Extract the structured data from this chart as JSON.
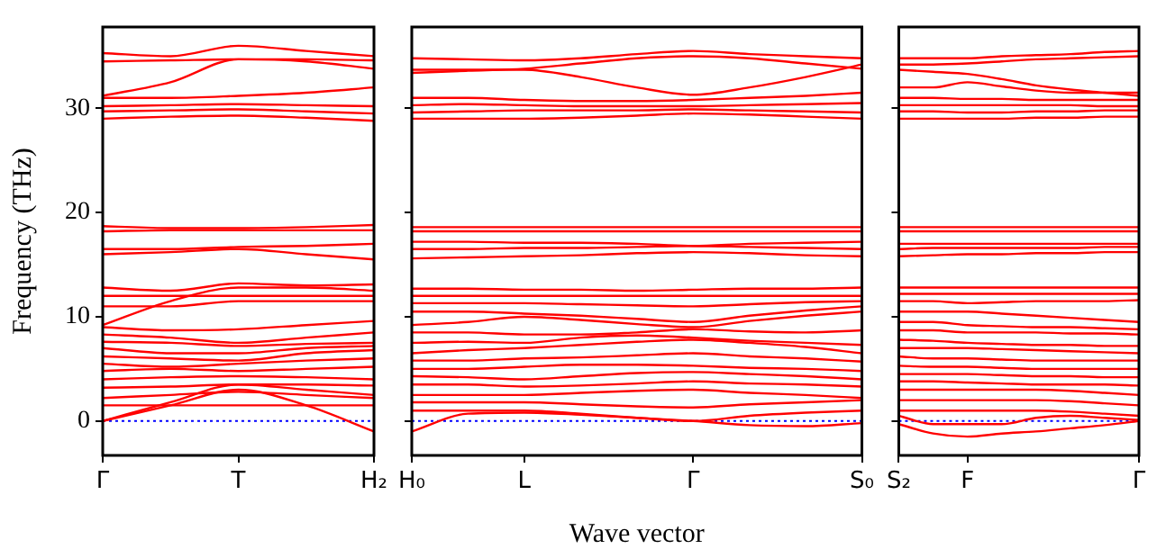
{
  "chart_data": [
    {
      "type": "line",
      "ylabel": "Frequency (THz)",
      "categories": [
        "Γ",
        null,
        "T",
        null,
        "H₂"
      ],
      "ylim": [
        -3.3,
        37.8
      ],
      "yticks": [
        0,
        10,
        20,
        30
      ],
      "grid": false,
      "legend": false,
      "ref_lines": [
        {
          "axis": "y",
          "value": 0,
          "color": "#0000ff",
          "line_style": "dotted"
        }
      ],
      "series": [
        {
          "color": "#ff0000",
          "values": [
            0,
            1.5,
            3,
            1.5,
            -1
          ]
        },
        {
          "color": "#ff0000",
          "values": [
            0,
            1.8,
            3.5,
            3,
            2.5
          ]
        },
        {
          "color": "#ff0000",
          "values": [
            1.5,
            1.5,
            1.5,
            1.5,
            1.5
          ]
        },
        {
          "color": "#ff0000",
          "values": [
            2.2,
            2.5,
            2.8,
            2.5,
            2.2
          ]
        },
        {
          "color": "#ff0000",
          "values": [
            3.2,
            3.3,
            3.5,
            3.5,
            3.4
          ]
        },
        {
          "color": "#ff0000",
          "values": [
            4,
            4.2,
            4.3,
            4.2,
            4
          ]
        },
        {
          "color": "#ff0000",
          "values": [
            4.8,
            5,
            4.8,
            5,
            5.2
          ]
        },
        {
          "color": "#ff0000",
          "values": [
            5.5,
            5.2,
            5.5,
            5.8,
            6
          ]
        },
        {
          "color": "#ff0000",
          "values": [
            6.2,
            6,
            5.8,
            6.5,
            6.8
          ]
        },
        {
          "color": "#ff0000",
          "values": [
            7,
            6.5,
            6.5,
            7,
            7.2
          ]
        },
        {
          "color": "#ff0000",
          "values": [
            7.6,
            7.5,
            7.2,
            7.4,
            7.5
          ]
        },
        {
          "color": "#ff0000",
          "values": [
            8.3,
            8,
            7.5,
            8,
            8.5
          ]
        },
        {
          "color": "#ff0000",
          "values": [
            9,
            8.7,
            8.8,
            9.2,
            9.6
          ]
        },
        {
          "color": "#ff0000",
          "values": [
            9.2,
            11.5,
            12.8,
            12.8,
            12.5
          ]
        },
        {
          "color": "#ff0000",
          "values": [
            11,
            11,
            11.5,
            11.5,
            11.5
          ]
        },
        {
          "color": "#ff0000",
          "values": [
            12,
            12,
            12,
            12,
            12
          ]
        },
        {
          "color": "#ff0000",
          "values": [
            12.8,
            12.5,
            13.2,
            13,
            13.1
          ]
        },
        {
          "color": "#ff0000",
          "values": [
            16,
            16.2,
            16.5,
            16,
            15.5
          ]
        },
        {
          "color": "#ff0000",
          "values": [
            16.5,
            16.5,
            16.7,
            16.8,
            17
          ]
        },
        {
          "color": "#ff0000",
          "values": [
            18.2,
            18.3,
            18.3,
            18.3,
            18.3
          ]
        },
        {
          "color": "#ff0000",
          "values": [
            18.7,
            18.5,
            18.5,
            18.6,
            18.8
          ]
        },
        {
          "color": "#ff0000",
          "values": [
            29,
            29.2,
            29.3,
            29.1,
            28.8
          ]
        },
        {
          "color": "#ff0000",
          "values": [
            29.7,
            29.8,
            29.9,
            29.7,
            29.5
          ]
        },
        {
          "color": "#ff0000",
          "values": [
            30.2,
            30.3,
            30.4,
            30.3,
            30.2
          ]
        },
        {
          "color": "#ff0000",
          "values": [
            31,
            31,
            31.2,
            31.5,
            32
          ]
        },
        {
          "color": "#ff0000",
          "values": [
            31.2,
            32.5,
            34.7,
            34.5,
            33.8
          ]
        },
        {
          "color": "#ff0000",
          "values": [
            34.5,
            34.6,
            34.7,
            34.7,
            34.6
          ]
        },
        {
          "color": "#ff0000",
          "values": [
            35.3,
            35,
            36,
            35.5,
            35
          ]
        }
      ]
    },
    {
      "type": "line",
      "xlabel": "Wave vector",
      "categories": [
        "H₀",
        null,
        "L",
        null,
        null,
        "Γ",
        null,
        null,
        "S₀"
      ],
      "ylim": [
        -3.3,
        37.8
      ],
      "yticks": [
        0,
        10,
        20,
        30
      ],
      "tick_labels": "x",
      "grid": false,
      "legend": false,
      "ref_lines": [
        {
          "axis": "y",
          "value": 0,
          "color": "#0000ff",
          "line_style": "dotted"
        }
      ],
      "series": [
        {
          "color": "#ff0000",
          "values": [
            -1,
            0.7,
            0.8,
            0.6,
            0.3,
            0,
            -0.4,
            -0.5,
            -0.2
          ]
        },
        {
          "color": "#ff0000",
          "values": [
            1,
            1,
            1,
            0.7,
            0.3,
            0,
            0.5,
            0.8,
            1
          ]
        },
        {
          "color": "#ff0000",
          "values": [
            1.8,
            1.8,
            1.8,
            1.6,
            1.4,
            1.3,
            1.6,
            1.8,
            2
          ]
        },
        {
          "color": "#ff0000",
          "values": [
            2.5,
            2.5,
            2.5,
            2.7,
            2.9,
            3,
            2.7,
            2.5,
            2.2
          ]
        },
        {
          "color": "#ff0000",
          "values": [
            3.5,
            3.5,
            3.3,
            3.4,
            3.6,
            3.8,
            3.6,
            3.5,
            3.3
          ]
        },
        {
          "color": "#ff0000",
          "values": [
            4.3,
            4.2,
            4,
            4.3,
            4.6,
            4.7,
            4.5,
            4.3,
            4
          ]
        },
        {
          "color": "#ff0000",
          "values": [
            5,
            5,
            5.2,
            5.4,
            5.4,
            5.3,
            5.1,
            5,
            4.8
          ]
        },
        {
          "color": "#ff0000",
          "values": [
            5.8,
            5.8,
            6,
            6.1,
            6.3,
            6.5,
            6.2,
            6,
            5.7
          ]
        },
        {
          "color": "#ff0000",
          "values": [
            6.5,
            6.8,
            7,
            7.3,
            7.6,
            7.8,
            7.5,
            7.1,
            6.5
          ]
        },
        {
          "color": "#ff0000",
          "values": [
            7.5,
            7.6,
            7.5,
            8,
            8.2,
            8,
            7.7,
            7.5,
            7.3
          ]
        },
        {
          "color": "#ff0000",
          "values": [
            8.5,
            8.5,
            8.3,
            8.3,
            8.5,
            8.8,
            8.6,
            8.5,
            8.7
          ]
        },
        {
          "color": "#ff0000",
          "values": [
            9.2,
            9.5,
            10,
            9.7,
            9.3,
            9,
            9.6,
            10.1,
            10.5
          ]
        },
        {
          "color": "#ff0000",
          "values": [
            10.5,
            10.5,
            10.3,
            10.1,
            9.8,
            9.5,
            10.1,
            10.6,
            11
          ]
        },
        {
          "color": "#ff0000",
          "values": [
            11.3,
            11.3,
            11.3,
            11.2,
            11.1,
            11,
            11.2,
            11.4,
            11.5
          ]
        },
        {
          "color": "#ff0000",
          "values": [
            12,
            12,
            12,
            12,
            12,
            12,
            12,
            12,
            12
          ]
        },
        {
          "color": "#ff0000",
          "values": [
            12.7,
            12.7,
            12.6,
            12.6,
            12.5,
            12.6,
            12.7,
            12.7,
            12.8
          ]
        },
        {
          "color": "#ff0000",
          "values": [
            15.6,
            15.7,
            15.8,
            15.9,
            16.1,
            16.2,
            16.1,
            15.9,
            15.8
          ]
        },
        {
          "color": "#ff0000",
          "values": [
            16.5,
            16.5,
            16.6,
            16.6,
            16.7,
            16.8,
            16.7,
            16.6,
            16.5
          ]
        },
        {
          "color": "#ff0000",
          "values": [
            17.2,
            17.2,
            17.1,
            17.1,
            17,
            16.8,
            17,
            17.1,
            17.2
          ]
        },
        {
          "color": "#ff0000",
          "values": [
            18.2,
            18.2,
            18.2,
            18.2,
            18.2,
            18.2,
            18.2,
            18.2,
            18.2
          ]
        },
        {
          "color": "#ff0000",
          "values": [
            18.6,
            18.6,
            18.6,
            18.6,
            18.6,
            18.6,
            18.6,
            18.6,
            18.6
          ]
        },
        {
          "color": "#ff0000",
          "values": [
            29,
            29,
            29,
            29.1,
            29.3,
            29.5,
            29.4,
            29.2,
            29
          ]
        },
        {
          "color": "#ff0000",
          "values": [
            29.6,
            29.7,
            29.8,
            29.8,
            29.8,
            29.9,
            29.8,
            29.7,
            29.6
          ]
        },
        {
          "color": "#ff0000",
          "values": [
            30.3,
            30.4,
            30.3,
            30.2,
            30.2,
            30.2,
            30.3,
            30.4,
            30.5
          ]
        },
        {
          "color": "#ff0000",
          "values": [
            31,
            31,
            30.8,
            30.7,
            30.7,
            30.8,
            31,
            31.2,
            31.5
          ]
        },
        {
          "color": "#ff0000",
          "values": [
            33.7,
            33.7,
            33.7,
            33,
            32,
            31.3,
            32,
            33,
            34.2
          ]
        },
        {
          "color": "#ff0000",
          "values": [
            33.4,
            33.6,
            33.8,
            34.3,
            34.8,
            35,
            34.8,
            34.3,
            33.8
          ]
        },
        {
          "color": "#ff0000",
          "values": [
            34.8,
            34.7,
            34.6,
            34.8,
            35.2,
            35.5,
            35.2,
            35,
            34.8
          ]
        }
      ]
    },
    {
      "type": "line",
      "categories": [
        "S₂",
        null,
        "F",
        null,
        null,
        null,
        null,
        "Γ"
      ],
      "ylim": [
        -3.3,
        37.8
      ],
      "yticks": [
        0,
        10,
        20,
        30
      ],
      "tick_labels": "x",
      "grid": false,
      "legend": false,
      "ref_lines": [
        {
          "axis": "y",
          "value": 0,
          "color": "#0000ff",
          "line_style": "dotted"
        }
      ],
      "series": [
        {
          "color": "#ff0000",
          "values": [
            -0.3,
            -1.2,
            -1.5,
            -1.2,
            -1,
            -0.7,
            -0.4,
            0
          ]
        },
        {
          "color": "#ff0000",
          "values": [
            0.5,
            -0.3,
            -0.3,
            -0.3,
            0.3,
            0.5,
            0.3,
            0.1
          ]
        },
        {
          "color": "#ff0000",
          "values": [
            1,
            1,
            1,
            1,
            1,
            0.9,
            0.7,
            0.5
          ]
        },
        {
          "color": "#ff0000",
          "values": [
            2,
            2,
            2,
            2,
            2,
            1.9,
            1.7,
            1.5
          ]
        },
        {
          "color": "#ff0000",
          "values": [
            3,
            3,
            3,
            3,
            3,
            2.9,
            2.7,
            2.5
          ]
        },
        {
          "color": "#ff0000",
          "values": [
            3.8,
            3.8,
            3.7,
            3.6,
            3.5,
            3.5,
            3.5,
            3.4
          ]
        },
        {
          "color": "#ff0000",
          "values": [
            4.5,
            4.5,
            4.5,
            4.4,
            4.3,
            4.3,
            4.2,
            4.2
          ]
        },
        {
          "color": "#ff0000",
          "values": [
            5.3,
            5.2,
            5.2,
            5.1,
            5,
            5,
            5,
            5
          ]
        },
        {
          "color": "#ff0000",
          "values": [
            6.2,
            6,
            6,
            5.9,
            5.8,
            5.8,
            5.8,
            5.8
          ]
        },
        {
          "color": "#ff0000",
          "values": [
            7,
            7,
            7,
            6.9,
            6.8,
            6.7,
            6.6,
            6.5
          ]
        },
        {
          "color": "#ff0000",
          "values": [
            7.8,
            7.7,
            7.5,
            7.4,
            7.3,
            7.3,
            7.2,
            7.2
          ]
        },
        {
          "color": "#ff0000",
          "values": [
            8.7,
            8.7,
            8.5,
            8.5,
            8.5,
            8.4,
            8.4,
            8.3
          ]
        },
        {
          "color": "#ff0000",
          "values": [
            9.5,
            9.5,
            9.2,
            9.1,
            9,
            9,
            8.9,
            8.8
          ]
        },
        {
          "color": "#ff0000",
          "values": [
            10.5,
            10.5,
            10.5,
            10.3,
            10.1,
            9.9,
            9.7,
            9.5
          ]
        },
        {
          "color": "#ff0000",
          "values": [
            11.5,
            11.5,
            11.3,
            11.4,
            11.5,
            11.5,
            11.5,
            11.6
          ]
        },
        {
          "color": "#ff0000",
          "values": [
            12.2,
            12.2,
            12.2,
            12.2,
            12.2,
            12.2,
            12.2,
            12.2
          ]
        },
        {
          "color": "#ff0000",
          "values": [
            12.8,
            12.8,
            12.8,
            12.8,
            12.8,
            12.8,
            12.8,
            12.8
          ]
        },
        {
          "color": "#ff0000",
          "values": [
            15.8,
            15.9,
            16,
            16,
            16.1,
            16.1,
            16.2,
            16.2
          ]
        },
        {
          "color": "#ff0000",
          "values": [
            16.5,
            16.6,
            16.6,
            16.6,
            16.6,
            16.6,
            16.7,
            16.7
          ]
        },
        {
          "color": "#ff0000",
          "values": [
            17,
            17,
            17,
            17,
            17,
            17,
            17,
            17
          ]
        },
        {
          "color": "#ff0000",
          "values": [
            18.2,
            18.2,
            18.2,
            18.2,
            18.2,
            18.2,
            18.2,
            18.2
          ]
        },
        {
          "color": "#ff0000",
          "values": [
            18.6,
            18.6,
            18.6,
            18.6,
            18.6,
            18.6,
            18.6,
            18.6
          ]
        },
        {
          "color": "#ff0000",
          "values": [
            29,
            29,
            29,
            29,
            29.1,
            29.1,
            29.2,
            29.2
          ]
        },
        {
          "color": "#ff0000",
          "values": [
            29.7,
            29.7,
            29.6,
            29.6,
            29.7,
            29.7,
            29.8,
            29.8
          ]
        },
        {
          "color": "#ff0000",
          "values": [
            30.3,
            30.3,
            30.3,
            30.3,
            30.3,
            30.3,
            30.2,
            30.2
          ]
        },
        {
          "color": "#ff0000",
          "values": [
            31,
            31,
            30.9,
            30.9,
            30.8,
            30.8,
            30.8,
            30.8
          ]
        },
        {
          "color": "#ff0000",
          "values": [
            32,
            32,
            32.5,
            32.1,
            31.7,
            31.5,
            31.5,
            31.5
          ]
        },
        {
          "color": "#ff0000",
          "values": [
            33.7,
            33.5,
            33.3,
            32.8,
            32.2,
            31.8,
            31.5,
            31.2
          ]
        },
        {
          "color": "#ff0000",
          "values": [
            34.2,
            34.2,
            34.3,
            34.5,
            34.7,
            34.8,
            34.9,
            35
          ]
        },
        {
          "color": "#ff0000",
          "values": [
            34.8,
            34.8,
            34.8,
            35,
            35.1,
            35.2,
            35.4,
            35.5
          ]
        }
      ]
    }
  ]
}
